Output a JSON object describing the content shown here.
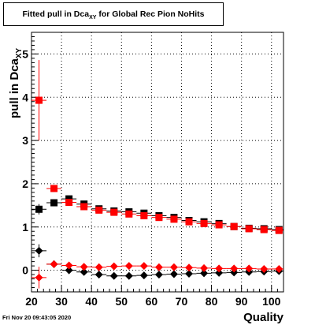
{
  "title_main": "Fitted pull in Dca",
  "title_sub": "XY",
  "title_rest": " for Global Rec Pion NoHits",
  "timestamp": "Fri Nov 20 09:43:05 2020",
  "chart_data": {
    "type": "scatter",
    "title": "Fitted pull in Dca_XY for Global Rec Pion NoHits",
    "xlabel": "Quality",
    "ylabel_main": "pull in Dca",
    "ylabel_sub": "XY",
    "xlim": [
      20,
      104
    ],
    "ylim": [
      -0.5,
      5.5
    ],
    "grid": true,
    "x_ticks": [
      20,
      30,
      40,
      50,
      60,
      70,
      80,
      90,
      100
    ],
    "y_ticks": [
      0,
      1,
      2,
      3,
      4,
      5
    ],
    "series": [
      {
        "marker": "square",
        "color": "#000000",
        "points": [
          {
            "x": 22.5,
            "y": 1.41,
            "yerr": 0.12
          },
          {
            "x": 27.5,
            "y": 1.56,
            "yerr": 0.06
          },
          {
            "x": 32.5,
            "y": 1.65,
            "yerr": 0.04
          },
          {
            "x": 37.5,
            "y": 1.53,
            "yerr": 0.03
          },
          {
            "x": 42.5,
            "y": 1.42,
            "yerr": 0.03
          },
          {
            "x": 47.5,
            "y": 1.37,
            "yerr": 0.03
          },
          {
            "x": 52.5,
            "y": 1.35,
            "yerr": 0.03
          },
          {
            "x": 57.5,
            "y": 1.32,
            "yerr": 0.03
          },
          {
            "x": 62.5,
            "y": 1.26,
            "yerr": 0.03
          },
          {
            "x": 67.5,
            "y": 1.22,
            "yerr": 0.03
          },
          {
            "x": 72.5,
            "y": 1.15,
            "yerr": 0.03
          },
          {
            "x": 77.5,
            "y": 1.12,
            "yerr": 0.03
          },
          {
            "x": 82.5,
            "y": 1.08,
            "yerr": 0.03
          },
          {
            "x": 87.5,
            "y": 1.01,
            "yerr": 0.03
          },
          {
            "x": 92.5,
            "y": 0.97,
            "yerr": 0.03
          },
          {
            "x": 97.5,
            "y": 0.96,
            "yerr": 0.03
          },
          {
            "x": 102.5,
            "y": 0.94,
            "yerr": 0.03
          }
        ]
      },
      {
        "marker": "square",
        "color": "#ff0000",
        "points": [
          {
            "x": 22.5,
            "y": 3.93,
            "yerr": 0.93
          },
          {
            "x": 27.5,
            "y": 1.89,
            "yerr": 0.08
          },
          {
            "x": 32.5,
            "y": 1.57,
            "yerr": 0.04
          },
          {
            "x": 37.5,
            "y": 1.47,
            "yerr": 0.03
          },
          {
            "x": 42.5,
            "y": 1.39,
            "yerr": 0.03
          },
          {
            "x": 47.5,
            "y": 1.34,
            "yerr": 0.03
          },
          {
            "x": 52.5,
            "y": 1.3,
            "yerr": 0.03
          },
          {
            "x": 57.5,
            "y": 1.26,
            "yerr": 0.03
          },
          {
            "x": 62.5,
            "y": 1.22,
            "yerr": 0.03
          },
          {
            "x": 67.5,
            "y": 1.18,
            "yerr": 0.03
          },
          {
            "x": 72.5,
            "y": 1.12,
            "yerr": 0.03
          },
          {
            "x": 77.5,
            "y": 1.08,
            "yerr": 0.03
          },
          {
            "x": 82.5,
            "y": 1.05,
            "yerr": 0.03
          },
          {
            "x": 87.5,
            "y": 1.01,
            "yerr": 0.03
          },
          {
            "x": 92.5,
            "y": 0.96,
            "yerr": 0.03
          },
          {
            "x": 97.5,
            "y": 0.94,
            "yerr": 0.03
          },
          {
            "x": 102.5,
            "y": 0.92,
            "yerr": 0.03
          }
        ]
      },
      {
        "marker": "diamond",
        "color": "#000000",
        "points": [
          {
            "x": 22.5,
            "y": 0.45,
            "yerr": 0.15
          },
          {
            "x": 27.5,
            "y": 0.14,
            "yerr": 0.05
          },
          {
            "x": 32.5,
            "y": 0.0,
            "yerr": 0.03
          },
          {
            "x": 37.5,
            "y": -0.04,
            "yerr": 0.03
          },
          {
            "x": 42.5,
            "y": -0.1,
            "yerr": 0.03
          },
          {
            "x": 47.5,
            "y": -0.13,
            "yerr": 0.03
          },
          {
            "x": 52.5,
            "y": -0.13,
            "yerr": 0.03
          },
          {
            "x": 57.5,
            "y": -0.12,
            "yerr": 0.03
          },
          {
            "x": 62.5,
            "y": -0.1,
            "yerr": 0.03
          },
          {
            "x": 67.5,
            "y": -0.09,
            "yerr": 0.03
          },
          {
            "x": 72.5,
            "y": -0.08,
            "yerr": 0.03
          },
          {
            "x": 77.5,
            "y": -0.07,
            "yerr": 0.03
          },
          {
            "x": 82.5,
            "y": -0.06,
            "yerr": 0.03
          },
          {
            "x": 87.5,
            "y": -0.05,
            "yerr": 0.03
          },
          {
            "x": 92.5,
            "y": -0.04,
            "yerr": 0.03
          },
          {
            "x": 97.5,
            "y": -0.03,
            "yerr": 0.03
          },
          {
            "x": 102.5,
            "y": -0.02,
            "yerr": 0.03
          }
        ]
      },
      {
        "marker": "diamond",
        "color": "#ff0000",
        "points": [
          {
            "x": 22.5,
            "y": -0.17,
            "yerr": 0.25
          },
          {
            "x": 27.5,
            "y": 0.14,
            "yerr": 0.05
          },
          {
            "x": 32.5,
            "y": 0.11,
            "yerr": 0.03
          },
          {
            "x": 37.5,
            "y": 0.08,
            "yerr": 0.03
          },
          {
            "x": 42.5,
            "y": 0.07,
            "yerr": 0.03
          },
          {
            "x": 47.5,
            "y": 0.09,
            "yerr": 0.03
          },
          {
            "x": 52.5,
            "y": 0.1,
            "yerr": 0.03
          },
          {
            "x": 57.5,
            "y": 0.1,
            "yerr": 0.03
          },
          {
            "x": 62.5,
            "y": 0.07,
            "yerr": 0.03
          },
          {
            "x": 67.5,
            "y": 0.07,
            "yerr": 0.03
          },
          {
            "x": 72.5,
            "y": 0.06,
            "yerr": 0.03
          },
          {
            "x": 77.5,
            "y": 0.05,
            "yerr": 0.03
          },
          {
            "x": 82.5,
            "y": 0.04,
            "yerr": 0.03
          },
          {
            "x": 87.5,
            "y": 0.04,
            "yerr": 0.03
          },
          {
            "x": 92.5,
            "y": 0.04,
            "yerr": 0.03
          },
          {
            "x": 97.5,
            "y": 0.03,
            "yerr": 0.03
          },
          {
            "x": 102.5,
            "y": 0.03,
            "yerr": 0.03
          }
        ]
      }
    ]
  }
}
